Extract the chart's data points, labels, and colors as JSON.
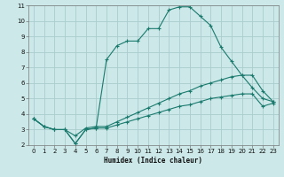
{
  "title": "",
  "xlabel": "Humidex (Indice chaleur)",
  "ylabel": "",
  "xlim": [
    -0.5,
    23.5
  ],
  "ylim": [
    2,
    11
  ],
  "yticks": [
    2,
    3,
    4,
    5,
    6,
    7,
    8,
    9,
    10,
    11
  ],
  "xticks": [
    0,
    1,
    2,
    3,
    4,
    5,
    6,
    7,
    8,
    9,
    10,
    11,
    12,
    13,
    14,
    15,
    16,
    17,
    18,
    19,
    20,
    21,
    22,
    23
  ],
  "background_color": "#cce8e8",
  "grid_color": "#aacccc",
  "line_color": "#1a7a6e",
  "series1_x": [
    0,
    1,
    2,
    3,
    4,
    5,
    6,
    7,
    8,
    9,
    10,
    11,
    12,
    13,
    14,
    15,
    16,
    17,
    18,
    19,
    20,
    21,
    22,
    23
  ],
  "series1_y": [
    3.7,
    3.2,
    3.0,
    3.0,
    2.1,
    3.0,
    3.1,
    7.5,
    8.4,
    8.7,
    8.7,
    9.5,
    9.5,
    10.7,
    10.9,
    10.9,
    10.3,
    9.7,
    8.3,
    7.4,
    6.5,
    5.7,
    5.0,
    4.8
  ],
  "series2_x": [
    0,
    1,
    2,
    3,
    4,
    5,
    6,
    7,
    8,
    9,
    10,
    11,
    12,
    13,
    14,
    15,
    16,
    17,
    18,
    19,
    20,
    21,
    22,
    23
  ],
  "series2_y": [
    3.7,
    3.2,
    3.0,
    3.0,
    2.6,
    3.1,
    3.2,
    3.2,
    3.5,
    3.8,
    4.1,
    4.4,
    4.7,
    5.0,
    5.3,
    5.5,
    5.8,
    6.0,
    6.2,
    6.4,
    6.5,
    6.5,
    5.5,
    4.8
  ],
  "series3_x": [
    0,
    1,
    2,
    3,
    4,
    5,
    6,
    7,
    8,
    9,
    10,
    11,
    12,
    13,
    14,
    15,
    16,
    17,
    18,
    19,
    20,
    21,
    22,
    23
  ],
  "series3_y": [
    3.7,
    3.2,
    3.0,
    3.0,
    2.1,
    3.0,
    3.1,
    3.1,
    3.3,
    3.5,
    3.7,
    3.9,
    4.1,
    4.3,
    4.5,
    4.6,
    4.8,
    5.0,
    5.1,
    5.2,
    5.3,
    5.3,
    4.5,
    4.7
  ],
  "label_fontsize": 5.5,
  "tick_fontsize": 5.0,
  "linewidth": 0.8,
  "markersize": 3.5
}
